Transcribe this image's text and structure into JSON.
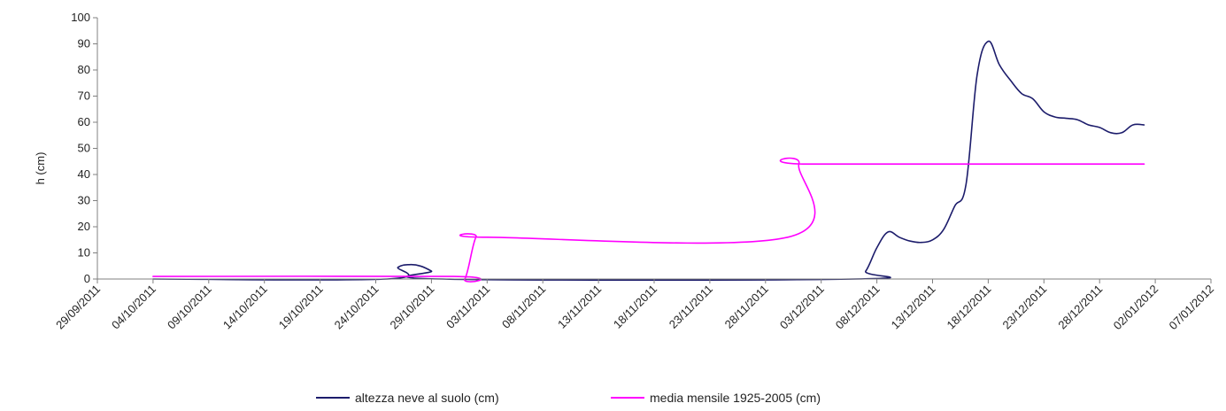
{
  "chart_data": {
    "type": "line",
    "ylabel": "h (cm)",
    "xlabel": "",
    "ylim": [
      0,
      100
    ],
    "xlim": [
      "2011-09-29",
      "2012-01-07"
    ],
    "yticks": [
      "0",
      "10",
      "20",
      "30",
      "40",
      "50",
      "60",
      "70",
      "80",
      "90",
      "100"
    ],
    "xticks": [
      "29/09/2011",
      "04/10/2011",
      "09/10/2011",
      "14/10/2011",
      "19/10/2011",
      "24/10/2011",
      "29/10/2011",
      "03/11/2011",
      "08/11/2011",
      "13/11/2011",
      "18/11/2011",
      "23/11/2011",
      "28/11/2011",
      "03/12/2011",
      "08/12/2011",
      "13/12/2011",
      "18/12/2011",
      "23/12/2011",
      "28/12/2011",
      "02/01/2012",
      "07/01/2012"
    ],
    "legend": "bottom",
    "series": [
      {
        "name": "altezza neve al suolo (cm)",
        "color": "#1c1c6b",
        "points": [
          [
            "2011-10-04",
            0
          ],
          [
            "2011-10-25",
            0
          ],
          [
            "2011-10-26",
            4.5
          ],
          [
            "2011-10-27",
            5.5
          ],
          [
            "2011-10-28",
            5
          ],
          [
            "2011-10-29",
            3
          ],
          [
            "2011-10-30",
            0
          ],
          [
            "2011-12-06",
            0
          ],
          [
            "2011-12-07",
            3
          ],
          [
            "2011-12-08",
            12
          ],
          [
            "2011-12-09",
            18
          ],
          [
            "2011-12-10",
            16
          ],
          [
            "2011-12-11",
            14.5
          ],
          [
            "2011-12-12",
            14
          ],
          [
            "2011-12-13",
            15
          ],
          [
            "2011-12-14",
            19
          ],
          [
            "2011-12-15",
            28
          ],
          [
            "2011-12-16",
            36
          ],
          [
            "2011-12-17",
            78
          ],
          [
            "2011-12-18",
            91
          ],
          [
            "2011-12-19",
            82
          ],
          [
            "2011-12-20",
            76
          ],
          [
            "2011-12-21",
            71
          ],
          [
            "2011-12-22",
            69
          ],
          [
            "2011-12-23",
            64
          ],
          [
            "2011-12-24",
            62
          ],
          [
            "2011-12-25",
            61.5
          ],
          [
            "2011-12-26",
            61
          ],
          [
            "2011-12-27",
            59
          ],
          [
            "2011-12-28",
            58
          ],
          [
            "2011-12-29",
            56
          ],
          [
            "2011-12-30",
            56
          ],
          [
            "2011-12-31",
            59
          ],
          [
            "2012-01-01",
            59
          ]
        ]
      },
      {
        "name": "media mensile 1925-2005 (cm)",
        "color": "#ff00ff",
        "points": [
          [
            "2011-10-04",
            1
          ],
          [
            "2011-10-31",
            1
          ],
          [
            "2011-11-01",
            0
          ],
          [
            "2011-11-02",
            16
          ],
          [
            "2011-11-03",
            16
          ],
          [
            "2011-11-30",
            16
          ],
          [
            "2011-12-01",
            44
          ],
          [
            "2011-12-02",
            44
          ],
          [
            "2012-01-01",
            44
          ]
        ]
      }
    ]
  }
}
